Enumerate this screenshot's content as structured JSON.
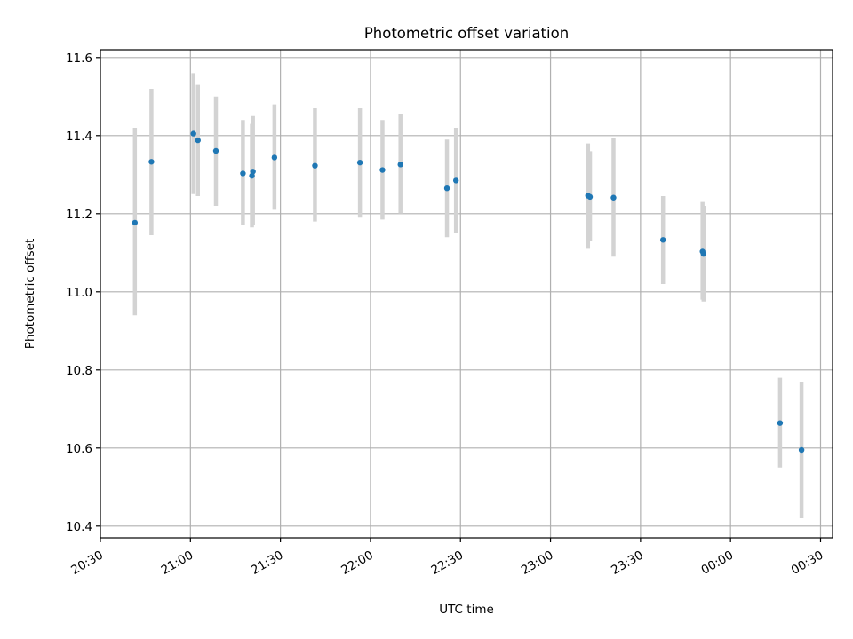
{
  "chart_data": {
    "type": "scatter",
    "title": "Photometric offset variation",
    "xlabel": "UTC time",
    "ylabel": "Photometric offset",
    "xlim": [
      "20:30",
      "00:34"
    ],
    "ylim": [
      10.37,
      11.62
    ],
    "x_ticks": [
      "20:30",
      "21:00",
      "21:30",
      "22:00",
      "22:30",
      "23:00",
      "23:30",
      "00:00",
      "00:30"
    ],
    "y_ticks": [
      "10.4",
      "10.6",
      "10.8",
      "11.0",
      "11.2",
      "11.4",
      "11.6"
    ],
    "grid": true,
    "colors": {
      "point": "#1f77b4",
      "error_bar": "#d3d3d3",
      "grid": "#b0b0b0"
    },
    "series": [
      {
        "points": [
          {
            "time": "20:41:30",
            "y": 11.177,
            "ylow": 10.94,
            "yhigh": 11.42
          },
          {
            "time": "20:47:00",
            "y": 11.333,
            "ylow": 11.145,
            "yhigh": 11.52
          },
          {
            "time": "21:01:00",
            "y": 11.405,
            "ylow": 11.25,
            "yhigh": 11.56
          },
          {
            "time": "21:02:30",
            "y": 11.388,
            "ylow": 11.245,
            "yhigh": 11.53
          },
          {
            "time": "21:08:30",
            "y": 11.361,
            "ylow": 11.22,
            "yhigh": 11.5
          },
          {
            "time": "21:17:30",
            "y": 11.303,
            "ylow": 11.17,
            "yhigh": 11.44
          },
          {
            "time": "21:20:30",
            "y": 11.297,
            "ylow": 11.165,
            "yhigh": 11.43
          },
          {
            "time": "21:20:50",
            "y": 11.308,
            "ylow": 11.17,
            "yhigh": 11.45
          },
          {
            "time": "21:28:00",
            "y": 11.344,
            "ylow": 11.21,
            "yhigh": 11.48
          },
          {
            "time": "21:41:30",
            "y": 11.323,
            "ylow": 11.18,
            "yhigh": 11.47
          },
          {
            "time": "21:56:30",
            "y": 11.331,
            "ylow": 11.19,
            "yhigh": 11.47
          },
          {
            "time": "22:04:00",
            "y": 11.312,
            "ylow": 11.185,
            "yhigh": 11.44
          },
          {
            "time": "22:10:00",
            "y": 11.326,
            "ylow": 11.2,
            "yhigh": 11.455
          },
          {
            "time": "22:25:30",
            "y": 11.265,
            "ylow": 11.14,
            "yhigh": 11.39
          },
          {
            "time": "22:28:30",
            "y": 11.285,
            "ylow": 11.15,
            "yhigh": 11.42
          },
          {
            "time": "23:12:30",
            "y": 11.246,
            "ylow": 11.11,
            "yhigh": 11.38
          },
          {
            "time": "23:13:10",
            "y": 11.243,
            "ylow": 11.13,
            "yhigh": 11.36
          },
          {
            "time": "23:21:00",
            "y": 11.241,
            "ylow": 11.09,
            "yhigh": 11.395
          },
          {
            "time": "23:37:30",
            "y": 11.133,
            "ylow": 11.02,
            "yhigh": 11.245
          },
          {
            "time": "23:50:40",
            "y": 11.103,
            "ylow": 10.98,
            "yhigh": 11.23
          },
          {
            "time": "23:51:00",
            "y": 11.097,
            "ylow": 10.975,
            "yhigh": 11.22
          },
          {
            "time": "00:16:30",
            "y": 10.664,
            "ylow": 10.55,
            "yhigh": 10.78
          },
          {
            "time": "00:23:40",
            "y": 10.595,
            "ylow": 10.42,
            "yhigh": 10.77
          }
        ]
      }
    ]
  }
}
